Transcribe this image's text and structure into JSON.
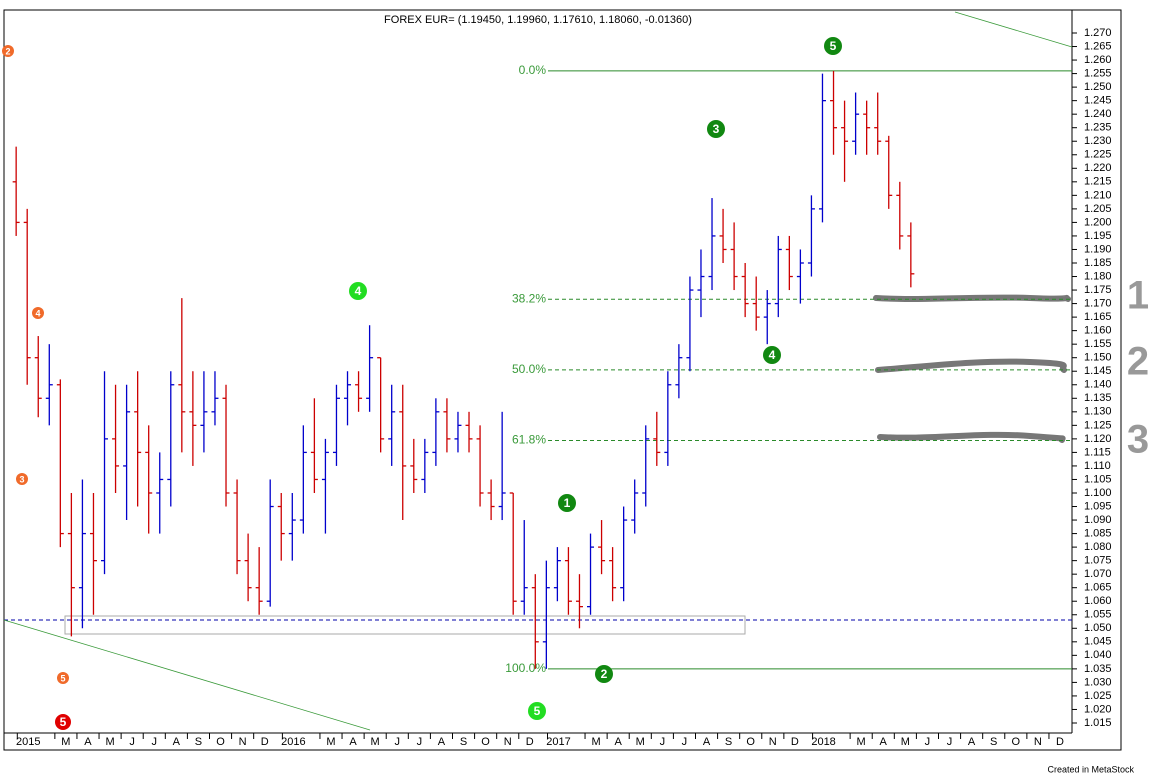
{
  "chart_data": {
    "type": "ohlc",
    "title": "FOREX EUR= (1.19450, 1.19960, 1.17610, 1.18060, -0.01360)",
    "footer": "Created in MetaStock",
    "up_color": "#0000cc",
    "down_color": "#cc0000",
    "xlim": [
      -0.3,
      48
    ],
    "ylim": [
      1.0113,
      1.2785
    ],
    "xticks": [
      {
        "value": 0.8,
        "label": "2015"
      },
      {
        "value": 2.5,
        "label": "M"
      },
      {
        "value": 3.5,
        "label": "A"
      },
      {
        "value": 4.5,
        "label": "M"
      },
      {
        "value": 5.5,
        "label": "J"
      },
      {
        "value": 6.5,
        "label": "J"
      },
      {
        "value": 7.5,
        "label": "A"
      },
      {
        "value": 8.5,
        "label": "S"
      },
      {
        "value": 9.5,
        "label": "O"
      },
      {
        "value": 10.5,
        "label": "N"
      },
      {
        "value": 11.5,
        "label": "D"
      },
      {
        "value": 12.8,
        "label": "2016"
      },
      {
        "value": 14.5,
        "label": "M"
      },
      {
        "value": 15.5,
        "label": "A"
      },
      {
        "value": 16.5,
        "label": "M"
      },
      {
        "value": 17.5,
        "label": "J"
      },
      {
        "value": 18.5,
        "label": "J"
      },
      {
        "value": 19.5,
        "label": "A"
      },
      {
        "value": 20.5,
        "label": "S"
      },
      {
        "value": 21.5,
        "label": "O"
      },
      {
        "value": 22.5,
        "label": "N"
      },
      {
        "value": 23.5,
        "label": "D"
      },
      {
        "value": 24.8,
        "label": "2017"
      },
      {
        "value": 26.5,
        "label": "M"
      },
      {
        "value": 27.5,
        "label": "A"
      },
      {
        "value": 28.5,
        "label": "M"
      },
      {
        "value": 29.5,
        "label": "J"
      },
      {
        "value": 30.5,
        "label": "J"
      },
      {
        "value": 31.5,
        "label": "A"
      },
      {
        "value": 32.5,
        "label": "S"
      },
      {
        "value": 33.5,
        "label": "O"
      },
      {
        "value": 34.5,
        "label": "N"
      },
      {
        "value": 35.5,
        "label": "D"
      },
      {
        "value": 36.8,
        "label": "2018"
      },
      {
        "value": 38.5,
        "label": "M"
      },
      {
        "value": 39.5,
        "label": "A"
      },
      {
        "value": 40.5,
        "label": "M"
      },
      {
        "value": 41.5,
        "label": "J"
      },
      {
        "value": 42.5,
        "label": "J"
      },
      {
        "value": 43.5,
        "label": "A"
      },
      {
        "value": 44.5,
        "label": "S"
      },
      {
        "value": 45.5,
        "label": "O"
      },
      {
        "value": 46.5,
        "label": "N"
      },
      {
        "value": 47.5,
        "label": "D"
      }
    ],
    "yticks": [
      1.015,
      {
        "value": 1.02,
        "label": "1.020"
      },
      1.025,
      {
        "value": 1.03,
        "label": "1.030"
      },
      1.035,
      {
        "value": 1.04,
        "label": "1.040"
      },
      1.045,
      {
        "value": 1.05,
        "label": "1.050"
      },
      1.055,
      {
        "value": 1.06,
        "label": "1.060"
      },
      1.065,
      {
        "value": 1.07,
        "label": "1.070"
      },
      1.075,
      {
        "value": 1.08,
        "label": "1.080"
      },
      1.085,
      {
        "value": 1.09,
        "label": "1.090"
      },
      1.095,
      {
        "value": 1.1,
        "label": "1.100"
      },
      1.105,
      {
        "value": 1.11,
        "label": "1.110"
      },
      1.115,
      {
        "value": 1.12,
        "label": "1.120"
      },
      1.125,
      {
        "value": 1.13,
        "label": "1.130"
      },
      1.135,
      {
        "value": 1.14,
        "label": "1.140"
      },
      1.145,
      {
        "value": 1.15,
        "label": "1.150"
      },
      1.155,
      {
        "value": 1.16,
        "label": "1.160"
      },
      1.165,
      {
        "value": 1.17,
        "label": "1.170"
      },
      1.175,
      {
        "value": 1.18,
        "label": "1.180"
      },
      1.185,
      {
        "value": 1.19,
        "label": "1.190"
      },
      1.195,
      {
        "value": 1.2,
        "label": "1.200"
      },
      1.205,
      {
        "value": 1.21,
        "label": "1.210"
      },
      1.215,
      {
        "value": 1.22,
        "label": "1.220"
      },
      1.225,
      {
        "value": 1.23,
        "label": "1.230"
      },
      1.235,
      {
        "value": 1.24,
        "label": "1.240"
      },
      1.245,
      {
        "value": 1.25,
        "label": "1.250"
      },
      1.255,
      {
        "value": 1.26,
        "label": "1.260"
      },
      1.265,
      {
        "value": 1.27,
        "label": "1.270"
      }
    ],
    "x": [
      0.25,
      0.75,
      1.25,
      1.75,
      2.25,
      2.75,
      3.25,
      3.75,
      4.25,
      4.75,
      5.25,
      5.75,
      6.25,
      6.75,
      7.25,
      7.75,
      8.25,
      8.75,
      9.25,
      9.75,
      10.25,
      10.75,
      11.25,
      11.75,
      12.25,
      12.75,
      13.25,
      13.75,
      14.25,
      14.75,
      15.25,
      15.75,
      16.25,
      16.75,
      17.25,
      17.75,
      18.25,
      18.75,
      19.25,
      19.75,
      20.25,
      20.75,
      21.25,
      21.75,
      22.25,
      22.75,
      23.25,
      23.75,
      24.25,
      24.75,
      25.25,
      25.75,
      26.25,
      26.75,
      27.25,
      27.75,
      28.25,
      28.75,
      29.25,
      29.75,
      30.25,
      30.75,
      31.25,
      31.75,
      32.25,
      32.75,
      33.25,
      33.75,
      34.25,
      34.75,
      35.25,
      35.75,
      36.25,
      36.75,
      37.25,
      37.75,
      38.25,
      38.75,
      39.25,
      39.75,
      40.25,
      40.75
    ],
    "open": [
      1.215,
      1.2,
      1.15,
      1.135,
      1.14,
      1.085,
      1.065,
      1.085,
      1.075,
      1.12,
      1.11,
      1.13,
      1.115,
      1.1,
      1.105,
      1.14,
      1.13,
      1.125,
      1.13,
      1.135,
      1.1,
      1.075,
      1.065,
      1.06,
      1.095,
      1.085,
      1.09,
      1.115,
      1.105,
      1.115,
      1.135,
      1.14,
      1.135,
      1.15,
      1.12,
      1.13,
      1.11,
      1.105,
      1.115,
      1.13,
      1.12,
      1.125,
      1.12,
      1.1,
      1.095,
      1.1,
      1.06,
      1.065,
      1.045,
      1.065,
      1.075,
      1.06,
      1.058,
      1.08,
      1.075,
      1.065,
      1.09,
      1.1,
      1.12,
      1.115,
      1.14,
      1.15,
      1.175,
      1.18,
      1.195,
      1.19,
      1.18,
      1.17,
      1.165,
      1.17,
      1.19,
      1.18,
      1.185,
      1.205,
      1.245,
      1.235,
      1.23,
      1.24,
      1.235,
      1.23,
      1.21,
      1.195
    ],
    "high": [
      1.228,
      1.205,
      1.158,
      1.155,
      1.142,
      1.1,
      1.105,
      1.1,
      1.145,
      1.14,
      1.14,
      1.145,
      1.125,
      1.115,
      1.145,
      1.172,
      1.145,
      1.145,
      1.145,
      1.14,
      1.105,
      1.085,
      1.08,
      1.105,
      1.1,
      1.1,
      1.125,
      1.135,
      1.12,
      1.14,
      1.145,
      1.145,
      1.162,
      1.15,
      1.14,
      1.14,
      1.12,
      1.12,
      1.135,
      1.135,
      1.13,
      1.13,
      1.125,
      1.105,
      1.13,
      1.1,
      1.09,
      1.07,
      1.075,
      1.08,
      1.08,
      1.07,
      1.085,
      1.09,
      1.08,
      1.095,
      1.105,
      1.125,
      1.13,
      1.145,
      1.155,
      1.18,
      1.19,
      1.209,
      1.205,
      1.2,
      1.185,
      1.18,
      1.175,
      1.195,
      1.195,
      1.19,
      1.21,
      1.255,
      1.256,
      1.245,
      1.248,
      1.245,
      1.248,
      1.232,
      1.215,
      1.2
    ],
    "low": [
      1.195,
      1.14,
      1.128,
      1.125,
      1.08,
      1.047,
      1.05,
      1.055,
      1.07,
      1.1,
      1.09,
      1.095,
      1.085,
      1.085,
      1.095,
      1.115,
      1.11,
      1.115,
      1.125,
      1.095,
      1.07,
      1.06,
      1.055,
      1.058,
      1.075,
      1.075,
      1.085,
      1.1,
      1.085,
      1.11,
      1.125,
      1.13,
      1.13,
      1.115,
      1.11,
      1.09,
      1.1,
      1.1,
      1.11,
      1.115,
      1.115,
      1.115,
      1.095,
      1.09,
      1.09,
      1.055,
      1.055,
      1.035,
      1.035,
      1.06,
      1.055,
      1.05,
      1.055,
      1.07,
      1.06,
      1.06,
      1.085,
      1.095,
      1.11,
      1.11,
      1.135,
      1.145,
      1.165,
      1.175,
      1.185,
      1.175,
      1.165,
      1.16,
      1.155,
      1.165,
      1.175,
      1.17,
      1.18,
      1.2,
      1.225,
      1.215,
      1.225,
      1.225,
      1.225,
      1.205,
      1.19,
      1.176
    ],
    "close": [
      1.2,
      1.15,
      1.135,
      1.14,
      1.085,
      1.065,
      1.085,
      1.075,
      1.12,
      1.11,
      1.13,
      1.115,
      1.1,
      1.105,
      1.14,
      1.13,
      1.125,
      1.13,
      1.135,
      1.1,
      1.075,
      1.065,
      1.06,
      1.095,
      1.085,
      1.09,
      1.115,
      1.105,
      1.115,
      1.135,
      1.14,
      1.135,
      1.15,
      1.12,
      1.13,
      1.11,
      1.105,
      1.115,
      1.13,
      1.12,
      1.125,
      1.12,
      1.1,
      1.095,
      1.1,
      1.06,
      1.065,
      1.045,
      1.065,
      1.075,
      1.06,
      1.058,
      1.08,
      1.075,
      1.065,
      1.09,
      1.1,
      1.12,
      1.115,
      1.14,
      1.15,
      1.175,
      1.18,
      1.195,
      1.19,
      1.18,
      1.17,
      1.165,
      1.17,
      1.19,
      1.18,
      1.185,
      1.205,
      1.245,
      1.235,
      1.23,
      1.24,
      1.235,
      1.23,
      1.21,
      1.195,
      1.181
    ],
    "fib_levels": [
      {
        "label": "0.0%",
        "value": 1.256
      },
      {
        "label": "38.2%",
        "value": 1.1716
      },
      {
        "label": "50.0%",
        "value": 1.1455
      },
      {
        "label": "61.8%",
        "value": 1.1194
      },
      {
        "label": "100.0%",
        "value": 1.035
      }
    ],
    "waves": [
      {
        "label": "2",
        "color": "#f06a2a"
      },
      {
        "label": "4",
        "color": "#f06a2a"
      },
      {
        "label": "3",
        "color": "#f06a2a"
      },
      {
        "label": "5",
        "color": "#f06a2a"
      },
      {
        "label": "5",
        "color": "#e00000"
      },
      {
        "label": "4",
        "color": "#22dd22"
      },
      {
        "label": "5",
        "color": "#22dd22"
      },
      {
        "label": "5",
        "color": "#118811"
      },
      {
        "label": "3",
        "color": "#118811"
      },
      {
        "label": "4",
        "color": "#118811"
      },
      {
        "label": "1",
        "color": "#118811"
      },
      {
        "label": "2",
        "color": "#118811"
      }
    ],
    "side_marks": [
      "1",
      "2",
      "3"
    ]
  }
}
